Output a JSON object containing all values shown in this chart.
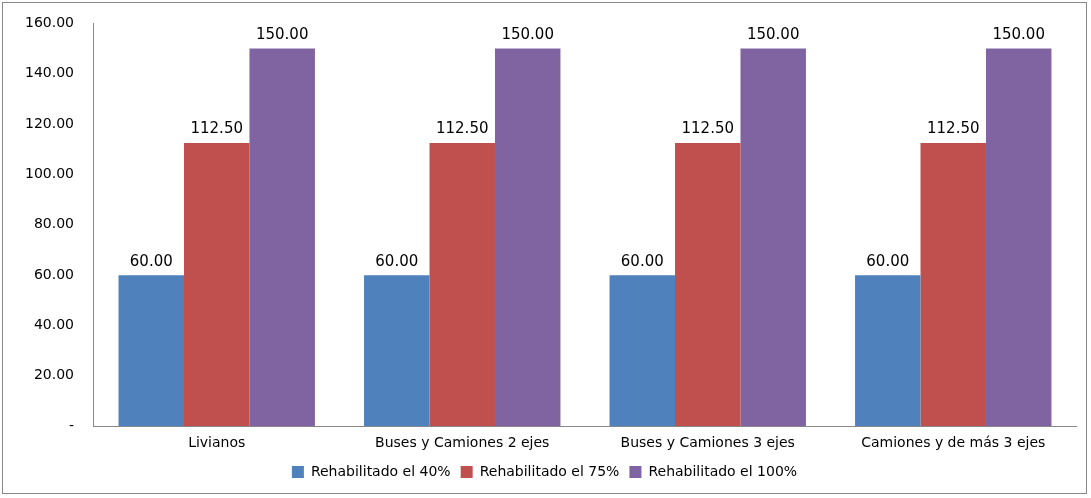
{
  "chart_data": {
    "type": "bar",
    "categories": [
      "Livianos",
      "Buses y Camiones 2 ejes",
      "Buses y Camiones 3 ejes",
      "Camiones y de más 3 ejes"
    ],
    "series": [
      {
        "name": "Rehabilitado el 40%",
        "color": "#4f81bd",
        "values": [
          60,
          60,
          60,
          60
        ],
        "value_labels": [
          "60.00",
          "60.00",
          "60.00",
          "60.00"
        ]
      },
      {
        "name": "Rehabilitado el 75%",
        "color": "#c0504d",
        "values": [
          112.5,
          112.5,
          112.5,
          112.5
        ],
        "value_labels": [
          "112.50",
          "112.50",
          "112.50",
          "112.50"
        ]
      },
      {
        "name": "Rehabilitado el 100%",
        "color": "#8064a2",
        "values": [
          150,
          150,
          150,
          150
        ],
        "value_labels": [
          "150.00",
          "150.00",
          "150.00",
          "150.00"
        ]
      }
    ],
    "ylim": [
      0,
      160
    ],
    "yticks": [
      {
        "value": 0,
        "label": "-"
      },
      {
        "value": 20,
        "label": "20.00"
      },
      {
        "value": 40,
        "label": "40.00"
      },
      {
        "value": 60,
        "label": "60.00"
      },
      {
        "value": 80,
        "label": "80.00"
      },
      {
        "value": 100,
        "label": "100.00"
      },
      {
        "value": 120,
        "label": "120.00"
      },
      {
        "value": 140,
        "label": "140.00"
      },
      {
        "value": 160,
        "label": "160.00"
      }
    ],
    "grid": false,
    "legend": "bottom"
  }
}
